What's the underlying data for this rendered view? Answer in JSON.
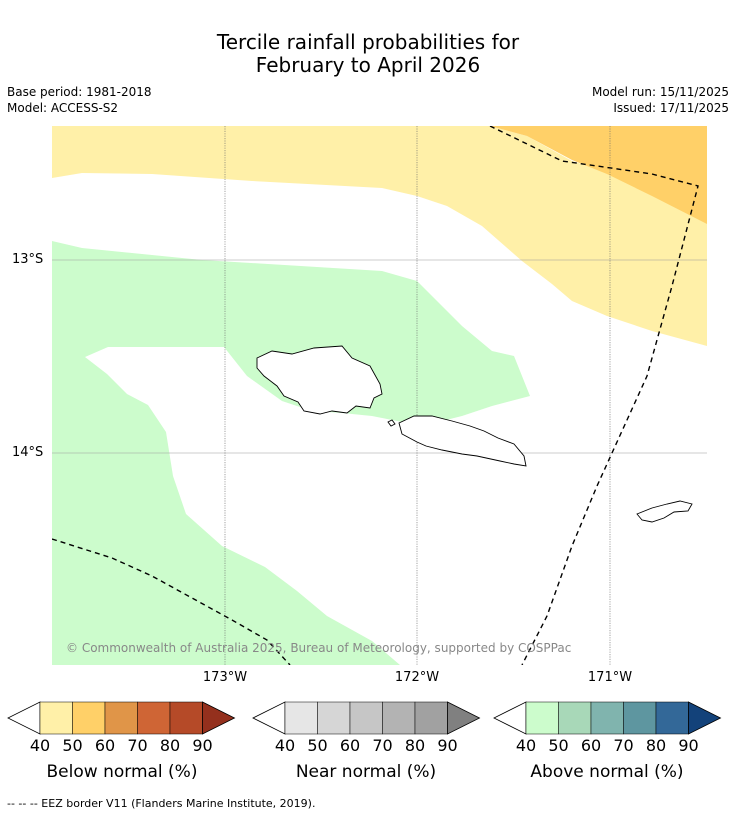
{
  "title_line1": "Tercile rainfall probabilities for",
  "title_line2": "February to April 2026",
  "base_period": "Base period: 1981-2018",
  "model": "Model: ACCESS-S2",
  "model_run": "Model run: 15/11/2025",
  "issued": "Issued: 17/11/2025",
  "lat_labels": [
    "13°S",
    "14°S"
  ],
  "lon_labels": [
    "173°W",
    "172°W",
    "171°W"
  ],
  "credit": "© Commonwealth of Australia 2025, Bureau of Meteorology, supported by COSPPac",
  "colorbars": [
    {
      "label": "Below normal (%)",
      "ticks": [
        "40",
        "50",
        "60",
        "70",
        "80",
        "90"
      ],
      "colors": [
        "#fff0a8",
        "#ffd068",
        "#e09548",
        "#cf6535",
        "#b54a28",
        "#94301d"
      ]
    },
    {
      "label": "Near normal (%)",
      "ticks": [
        "40",
        "50",
        "60",
        "70",
        "80",
        "90"
      ],
      "colors": [
        "#e6e6e6",
        "#d6d6d6",
        "#c6c6c6",
        "#b3b3b3",
        "#a1a1a1",
        "#808080"
      ]
    },
    {
      "label": "Above normal (%)",
      "ticks": [
        "40",
        "50",
        "60",
        "70",
        "80",
        "90"
      ],
      "colors": [
        "#ccfccc",
        "#a8d8b8",
        "#80b4ae",
        "#5e96a0",
        "#336898",
        "#13427a"
      ]
    }
  ],
  "footer": "--  --  -- EEZ border V11 (Flanders Marine Institute, 2019)."
}
